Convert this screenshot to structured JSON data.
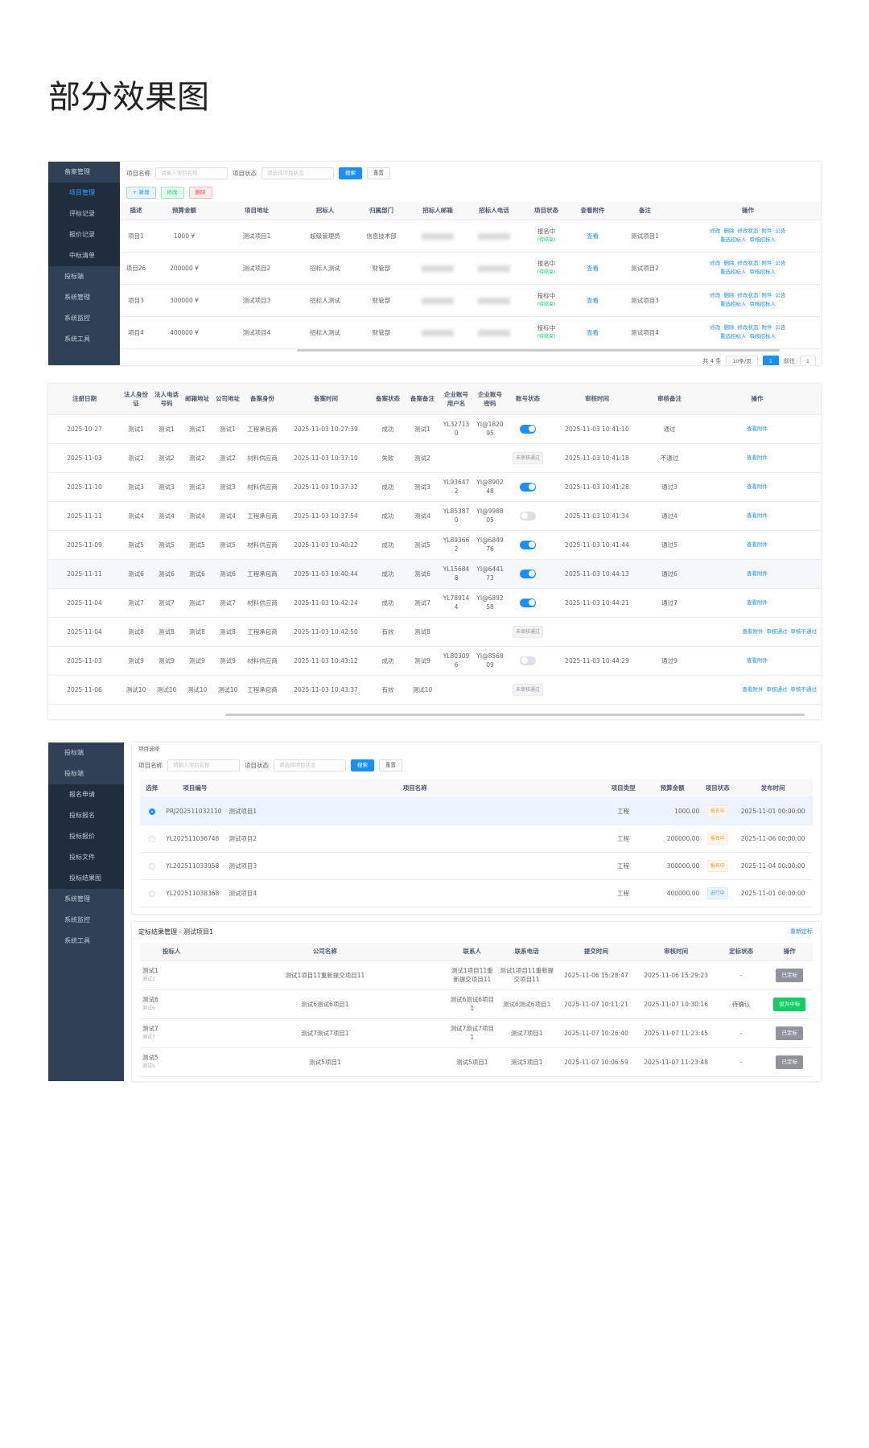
{
  "header": {
    "title": "部分效果图"
  },
  "panel1": {
    "sidebar": [
      "备案管理",
      "项目管理",
      "评标记录",
      "报价记录",
      "中标清单",
      "投标端",
      "系统管理",
      "系统监控",
      "系统工具"
    ],
    "filter": {
      "label1": "项目名称",
      "placeholder1": "请输入项目名称",
      "label2": "项目状态",
      "placeholder2": "请选择项目状态",
      "search": "搜索",
      "reset": "重置"
    },
    "toolbar": [
      "+ 新增",
      "修改",
      "删除"
    ],
    "columns": [
      "描述",
      "预算金额",
      "项目地址",
      "招标人",
      "归属部门",
      "招标人邮箱",
      "招标人电话",
      "项目状态",
      "查看附件",
      "备注",
      "操作"
    ],
    "rows": [
      {
        "description": "项目1",
        "budget": "1000 ¥",
        "address": "测试项目1",
        "tenderer": "超级管理员",
        "department": "信息技术部",
        "status": "报名中",
        "status_note": "(待结束)",
        "attachment": "查看",
        "remark": "测试项目1"
      },
      {
        "description": "项目26",
        "budget": "200000 ¥",
        "address": "测试项目2",
        "tenderer": "招标人测试",
        "department": "财管部",
        "status": "报名中",
        "status_note": "(待结束)",
        "attachment": "查看",
        "remark": "测试项目2"
      },
      {
        "description": "项目3",
        "budget": "300000 ¥",
        "address": "测试项目3",
        "tenderer": "招标人测试",
        "department": "财管部",
        "status": "投标中",
        "status_note": "(待结束)",
        "attachment": "查看",
        "remark": "测试项目3"
      },
      {
        "description": "项目4",
        "budget": "400000 ¥",
        "address": "测试项目4",
        "tenderer": "招标人测试",
        "department": "财管部",
        "status": "投标中",
        "status_note": "(待结束)",
        "attachment": "查看",
        "remark": "测试项目4"
      }
    ],
    "actions_line1": [
      "修改",
      "删除",
      "修改状态",
      "附件",
      "公告"
    ],
    "actions_line2": [
      "重选招标人",
      "审核招标人"
    ],
    "pagination": {
      "total": "共 4 条",
      "page_size": "10条/页",
      "page": "1",
      "goto": "前往",
      "goto_page": "1"
    }
  },
  "panel2": {
    "columns": [
      "注册日期",
      "法人身份证",
      "法人电话号码",
      "邮箱地址",
      "公司地址",
      "备案身份",
      "备案时间",
      "备案状态",
      "备案备注",
      "企业账号用户名",
      "企业账号密码",
      "账号状态",
      "审核时间",
      "审核备注",
      "操作"
    ],
    "rows": [
      {
        "date": "2025-10-27",
        "id_card": "测试1",
        "phone": "测试1",
        "email": "测试1",
        "address": "测试1",
        "identity": "工程承包商",
        "filed_time": "2025-11-03 10:27:39",
        "filing_status": "成功",
        "filing_remark": "测试1",
        "username": "YL327130",
        "password": "YI@182095",
        "account_enabled": true,
        "audit_time": "2025-11-03 10:41:10",
        "audit_remark": "通过",
        "actions": [
          "查看附件"
        ]
      },
      {
        "date": "2025-11-03",
        "id_card": "测试2",
        "phone": "测试2",
        "email": "测试2",
        "address": "测试2",
        "identity": "材料供应商",
        "filed_time": "2025-11-03 10:37:10",
        "filing_status": "失败",
        "filing_remark": "测试2",
        "account_tag": "未审核通过",
        "audit_time": "2025-11-03 10:41:18",
        "audit_remark": "不通过",
        "actions": [
          "查看附件"
        ]
      },
      {
        "date": "2025-11-10",
        "id_card": "测试3",
        "phone": "测试3",
        "email": "测试3",
        "address": "测试3",
        "identity": "材料供应商",
        "filed_time": "2025-11-03 10:37:32",
        "filing_status": "成功",
        "filing_remark": "测试3",
        "username": "YL936472",
        "password": "YI@890248",
        "account_enabled": true,
        "audit_time": "2025-11-03 10:41:28",
        "audit_remark": "通过3",
        "actions": [
          "查看附件"
        ]
      },
      {
        "date": "2025-11-11",
        "id_card": "测试4",
        "phone": "测试4",
        "email": "测试4",
        "address": "测试4",
        "identity": "工程承包商",
        "filed_time": "2025-11-03 10:37:54",
        "filing_status": "成功",
        "filing_remark": "测试4",
        "username": "YL853870",
        "password": "YI@998805",
        "account_enabled": false,
        "audit_time": "2025-11-03 10:41:34",
        "audit_remark": "通过4",
        "actions": [
          "查看附件"
        ]
      },
      {
        "date": "2025-11-09",
        "id_card": "测试5",
        "phone": "测试5",
        "email": "测试5",
        "address": "测试5",
        "identity": "材料供应商",
        "filed_time": "2025-11-03 10:40:22",
        "filing_status": "成功",
        "filing_remark": "测试5",
        "username": "YL893662",
        "password": "YI@684976",
        "account_enabled": true,
        "audit_time": "2025-11-03 10:41:44",
        "audit_remark": "通过5",
        "actions": [
          "查看附件"
        ]
      },
      {
        "date": "2025-11-11",
        "id_card": "测试6",
        "phone": "测试6",
        "email": "测试6",
        "address": "测试6",
        "identity": "工程承包商",
        "filed_time": "2025-11-03 10:40:44",
        "filing_status": "成功",
        "filing_remark": "测试6",
        "username": "YL156848",
        "password": "YI@644173",
        "account_enabled": true,
        "audit_time": "2025-11-03 10:44:13",
        "audit_remark": "通过6",
        "actions": [
          "查看附件"
        ]
      },
      {
        "date": "2025-11-04",
        "id_card": "测试7",
        "phone": "测试7",
        "email": "测试7",
        "address": "测试7",
        "identity": "材料供应商",
        "filed_time": "2025-11-03 10:42:24",
        "filing_status": "成功",
        "filing_remark": "测试7",
        "username": "YL789144",
        "password": "YI@689258",
        "account_enabled": true,
        "audit_time": "2025-11-03 10:44:21",
        "audit_remark": "通过7",
        "actions": [
          "查看附件"
        ]
      },
      {
        "date": "2025-11-04",
        "id_card": "测试8",
        "phone": "测试8",
        "email": "测试8",
        "address": "测试8",
        "identity": "工程承包商",
        "filed_time": "2025-11-03 10:42:50",
        "filing_status": "有效",
        "filing_remark": "测试8",
        "account_tag": "未审核通过",
        "actions": [
          "查看附件",
          "审核通过",
          "审核不通过"
        ]
      },
      {
        "date": "2025-11-03",
        "id_card": "测试9",
        "phone": "测试9",
        "email": "测试9",
        "address": "测试9",
        "identity": "材料供应商",
        "filed_time": "2025-11-03 10:43:12",
        "filing_status": "成功",
        "filing_remark": "测试9",
        "username": "YL803096",
        "password": "YI@856809",
        "account_enabled": false,
        "audit_time": "2025-11-03 10:44:29",
        "audit_remark": "通过9",
        "actions": [
          "查看附件"
        ]
      },
      {
        "date": "2025-11-06",
        "id_card": "测试10",
        "phone": "测试10",
        "email": "测试10",
        "address": "测试10",
        "identity": "工程承包商",
        "filed_time": "2025-11-03 10:43:37",
        "filing_status": "有效",
        "filing_remark": "测试10",
        "account_tag": "未审核通过",
        "actions": [
          "查看附件",
          "审核通过",
          "审核不通过"
        ]
      }
    ]
  },
  "panel3": {
    "sidebar": [
      "投标端",
      "投标端",
      "报名申请",
      "投标报名",
      "投标报价",
      "投标文件",
      "投标结果图",
      "系统管理",
      "系统监控",
      "系统工具"
    ],
    "section_label": "项目选择",
    "filter": {
      "label1": "项目名称",
      "placeholder1": "请输入项目名称",
      "label2": "项目状态",
      "placeholder2": "请选择项目状态",
      "search": "搜索",
      "reset": "重置"
    },
    "columns": [
      "选择",
      "项目编号",
      "项目名称",
      "项目类型",
      "预算金额",
      "项目状态",
      "发布时间"
    ],
    "rows": [
      {
        "code": "PRJ202511032110",
        "name": "测试项目1",
        "type": "工程",
        "budget": "1000.00",
        "status": "报名中",
        "published": "2025-11-01 00:00:00",
        "selected": true
      },
      {
        "code": "YL202511036748",
        "name": "测试项目2",
        "type": "工程",
        "budget": "200000.00",
        "status": "报名中",
        "published": "2025-11-06 00:00:00",
        "selected": false
      },
      {
        "code": "YL202511033958",
        "name": "测试项目3",
        "type": "工程",
        "budget": "300000.00",
        "status": "报名中",
        "published": "2025-11-04 00:00:00",
        "selected": false
      },
      {
        "code": "YL202511038368",
        "name": "测试项目4",
        "type": "工程",
        "budget": "400000.00",
        "status": "进行中",
        "published": "2025-11-01 00:00:00",
        "selected": false
      }
    ]
  },
  "panel4": {
    "title": "定标结果管理 - 测试项目1",
    "rebid": "重新定标",
    "columns": [
      "投标人",
      "公司名称",
      "联系人",
      "联系电话",
      "提交时间",
      "审核时间",
      "定标状态",
      "操作"
    ],
    "rows": [
      {
        "bidder": "测试1",
        "bidder_sub": "测试1",
        "company": "测试1项目11重新提交项目11",
        "contact": "测试1项目11重新提交项目11",
        "phone": "测试1项目11重新提交项目11",
        "submitted": "2025-11-06 15:28:47",
        "reviewed": "2025-11-06 15:29:23",
        "state": "-",
        "action": "已定标",
        "primary": false
      },
      {
        "bidder": "测试6",
        "bidder_sub": "测试6",
        "company": "测试6测试6项目1",
        "contact": "测试6测试6项目1",
        "phone": "测试6测试6项目1",
        "submitted": "2025-11-07 10:11:21",
        "reviewed": "2025-11-07 10:30:16",
        "state": "待确认",
        "action": "设为中标",
        "primary": true
      },
      {
        "bidder": "测试7",
        "bidder_sub": "测试7",
        "company": "测试7测试7项目1",
        "contact": "测试7测试7项目1",
        "phone": "测试7项目1",
        "submitted": "2025-11-07 10:26:40",
        "reviewed": "2025-11-07 11:23:45",
        "state": "-",
        "action": "已定标",
        "primary": false
      },
      {
        "bidder": "测试5",
        "bidder_sub": "测试5",
        "company": "测试5项目1",
        "contact": "测试5项目1",
        "phone": "测试5项目1",
        "submitted": "2025-11-07 10:06:59",
        "reviewed": "2025-11-07 11:23:48",
        "state": "-",
        "action": "已定标",
        "primary": false
      }
    ]
  }
}
